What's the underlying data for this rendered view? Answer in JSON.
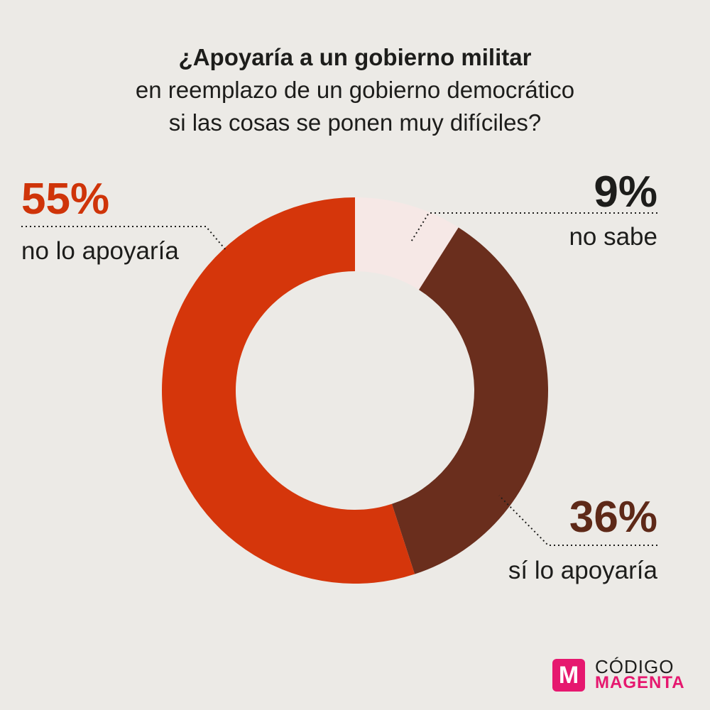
{
  "title": {
    "line1": "¿Apoyaría a un gobierno militar",
    "line2": "en reemplazo de un gobierno democrático",
    "line3": "si las cosas se ponen muy difíciles?"
  },
  "chart_data": {
    "type": "pie",
    "variant": "donut",
    "title": "¿Apoyaría a un gobierno militar en reemplazo de un gobierno democrático si las cosas se ponen muy difíciles?",
    "slices": [
      {
        "label": "no sabe",
        "value": 9,
        "display": "9%",
        "color": "#f6e8e6"
      },
      {
        "label": "sí lo apoyaría",
        "value": 36,
        "display": "36%",
        "color": "#6a2e1d"
      },
      {
        "label": "no lo apoyaría",
        "value": 55,
        "display": "55%",
        "color": "#d5360b"
      }
    ],
    "start": "top, clockwise"
  },
  "colors": {
    "background": "#eceae6",
    "accent_55": "#cf3409",
    "accent_36": "#5e2918",
    "brand_magenta": "#e6186f"
  },
  "logo": {
    "mark": "M",
    "top": "CÓDIGO",
    "bottom": "MAGENTA",
    "icon": "codigo-magenta-logo-icon"
  }
}
